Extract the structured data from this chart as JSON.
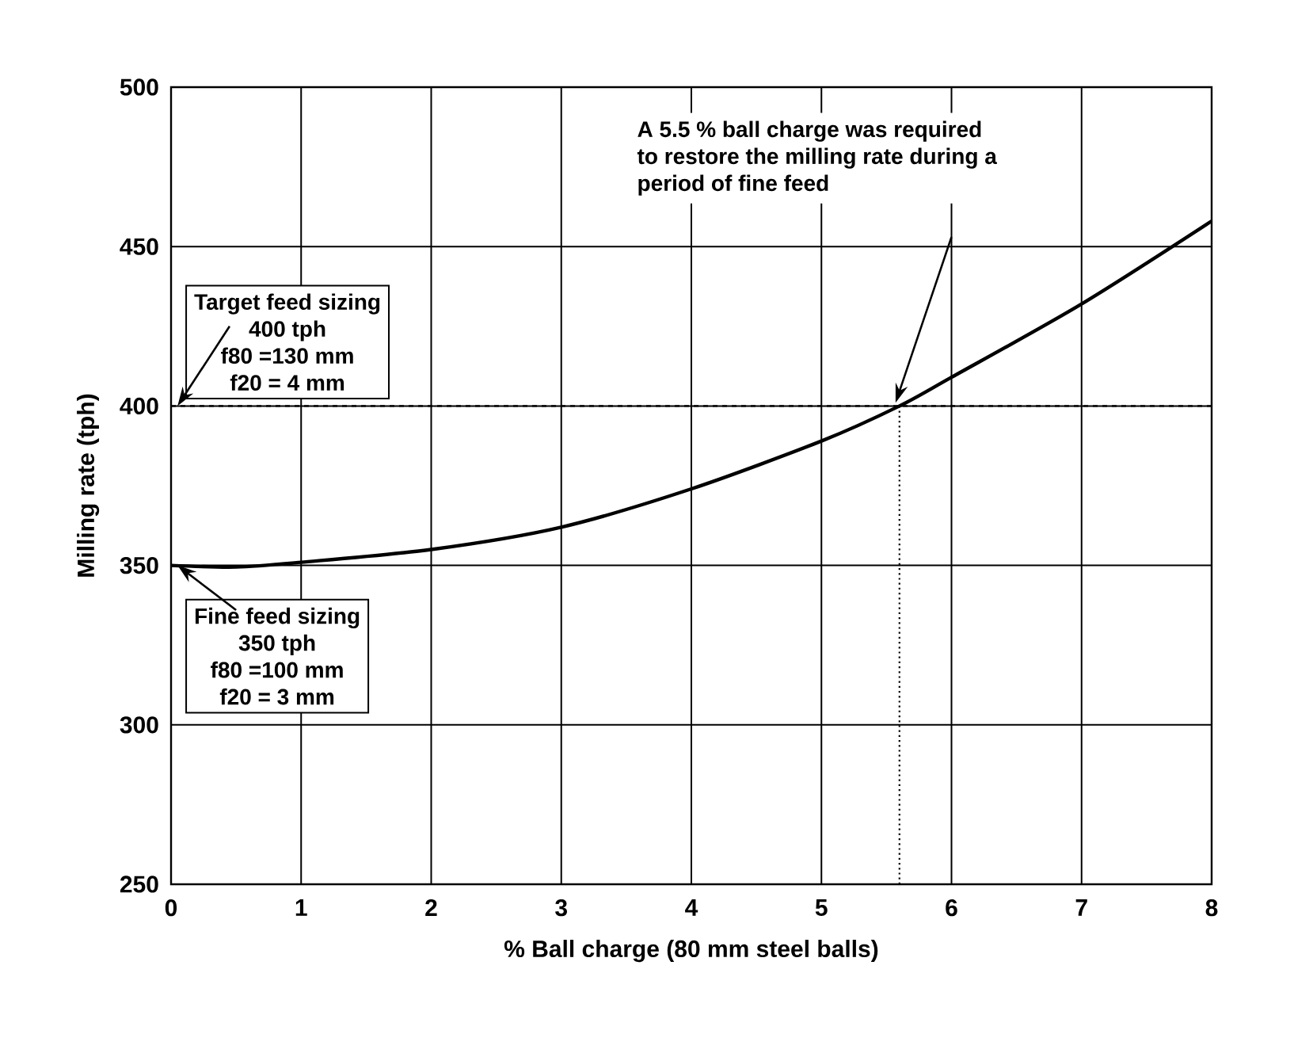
{
  "chart_data": {
    "type": "line",
    "xlabel": "% Ball charge (80 mm steel balls)",
    "ylabel": "Milling rate (tph)",
    "x": [
      0,
      0.5,
      1,
      2,
      3,
      4,
      5,
      5.6,
      6,
      7,
      8
    ],
    "series": [
      {
        "color": "#000000",
        "values": [
          350,
          349.5,
          351,
          355,
          362,
          374,
          389,
          400,
          409,
          432,
          458
        ]
      }
    ],
    "xlim": [
      0,
      8
    ],
    "xticks": [
      0,
      1,
      2,
      3,
      4,
      5,
      6,
      7,
      8
    ],
    "ylim": [
      250,
      500
    ],
    "yticks": [
      250,
      300,
      350,
      400,
      450,
      500
    ],
    "grid": true,
    "marker": "none",
    "line_style": "solid",
    "ref_lines": [
      {
        "axis": "y",
        "value": 400,
        "line_style": "dashed",
        "color": "#000000"
      },
      {
        "axis": "x",
        "value": 5.6,
        "line_style": "dotted",
        "color": "#000000"
      }
    ],
    "annotations": [
      "Target feed sizing",
      "400 tph",
      "f80 =130 mm",
      "f20 = 4 mm",
      "Fine feed sizing",
      "350 tph",
      "f80 =100 mm",
      "f20 = 3 mm",
      "A 5.5 % ball charge was required",
      "to restore the milling rate during a",
      "period of fine feed"
    ]
  }
}
